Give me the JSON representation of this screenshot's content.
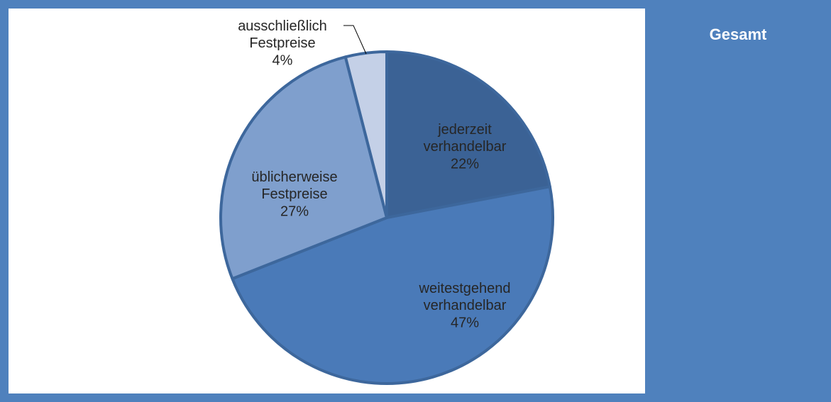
{
  "chart_data": {
    "type": "pie",
    "title": "Gesamt",
    "categories": [
      "jederzeit verhandelbar",
      "weitestgehend verhandelbar",
      "üblicherweise Festpreise",
      "ausschließlich Festpreise"
    ],
    "values": [
      22,
      47,
      27,
      4
    ],
    "value_labels": [
      "22%",
      "47%",
      "27%",
      "4%"
    ],
    "colors": [
      "#3b6295",
      "#4a7ab8",
      "#7f9fcd",
      "#c4d0e7"
    ]
  }
}
